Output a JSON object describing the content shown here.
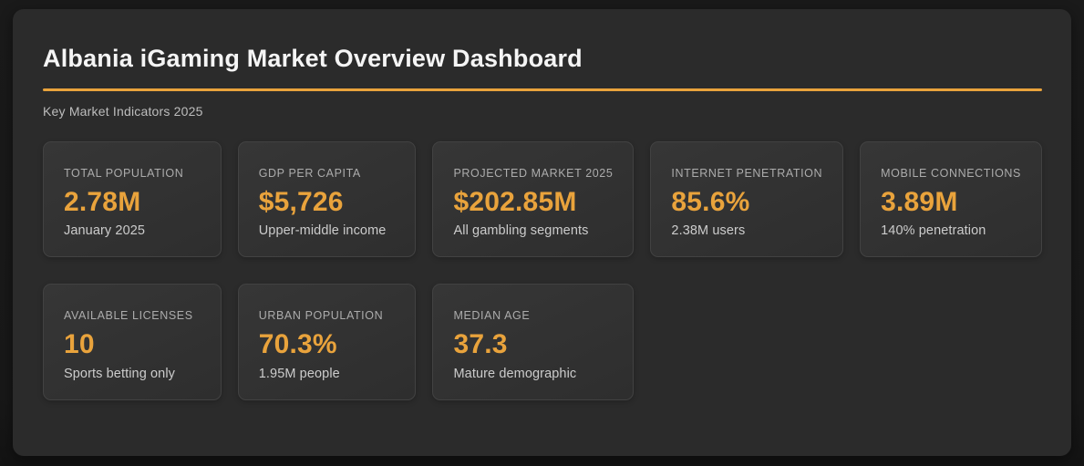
{
  "page": {
    "title": "Albania iGaming Market Overview Dashboard",
    "subtitle": "Key Market Indicators 2025"
  },
  "colors": {
    "accent_orange": "#E9A33C",
    "panel_background": "#2B2B2B",
    "outer_background": "#181818",
    "card_background": "#323232",
    "card_border": "#424242",
    "title_text": "#F5F5F5",
    "label_text": "#ACACAC",
    "note_text": "#CCCCCC"
  },
  "cards": [
    {
      "label": "TOTAL POPULATION",
      "value": "2.78M",
      "note": "January 2025"
    },
    {
      "label": "GDP PER CAPITA",
      "value": "$5,726",
      "note": "Upper-middle income"
    },
    {
      "label": "PROJECTED MARKET 2025",
      "value": "$202.85M",
      "note": "All gambling segments"
    },
    {
      "label": "INTERNET PENETRATION",
      "value": "85.6%",
      "note": "2.38M users"
    },
    {
      "label": "MOBILE CONNECTIONS",
      "value": "3.89M",
      "note": "140% penetration"
    },
    {
      "label": "AVAILABLE LICENSES",
      "value": "10",
      "note": "Sports betting only"
    },
    {
      "label": "URBAN POPULATION",
      "value": "70.3%",
      "note": "1.95M people"
    },
    {
      "label": "MEDIAN AGE",
      "value": "37.3",
      "note": "Mature demographic"
    }
  ]
}
